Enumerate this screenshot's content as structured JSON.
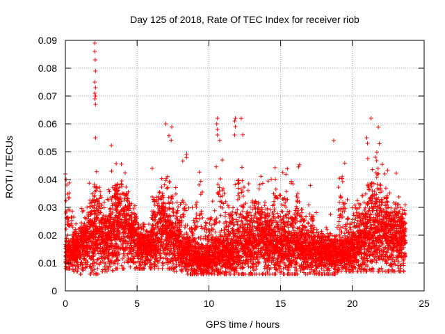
{
  "colors": {
    "marker": "#ff0000",
    "grid": "#a0a0a0",
    "axis": "#000000",
    "background": "#ffffff"
  },
  "chart_data": {
    "type": "scatter",
    "marker": "plus",
    "title": "Day 125 of 2018, Rate Of TEC Index for receiver riob",
    "xlabel": "GPS time / hours",
    "ylabel": "ROTI / TECUs",
    "xlim": [
      0,
      25
    ],
    "ylim": [
      0,
      0.09
    ],
    "xticks": [
      0,
      5,
      10,
      15,
      20,
      25
    ],
    "yticks": [
      0,
      0.01,
      0.02,
      0.03,
      0.04,
      0.05,
      0.06,
      0.07,
      0.08,
      0.09
    ],
    "xtick_labels": [
      "0",
      "5",
      "10",
      "15",
      "20",
      "25"
    ],
    "ytick_labels": [
      "0",
      "0.01",
      "0.02",
      "0.03",
      "0.04",
      "0.05",
      "0.06",
      "0.07",
      "0.08",
      "0.09"
    ],
    "grid": true,
    "density_profile": {
      "x_hours": [
        0,
        0.5,
        1,
        1.5,
        2,
        2.5,
        3,
        3.5,
        4,
        4.5,
        5,
        5.5,
        6,
        6.5,
        7,
        7.5,
        8,
        8.5,
        9,
        9.5,
        10,
        10.5,
        11,
        11.5,
        12,
        12.5,
        13,
        13.5,
        14,
        14.5,
        15,
        15.5,
        16,
        16.5,
        17,
        17.5,
        18,
        18.5,
        19,
        19.5,
        20,
        20.5,
        21,
        21.5,
        22,
        22.5,
        23,
        23.5
      ],
      "median_roti": [
        0.013,
        0.014,
        0.016,
        0.017,
        0.018,
        0.017,
        0.019,
        0.022,
        0.021,
        0.018,
        0.016,
        0.015,
        0.017,
        0.02,
        0.018,
        0.016,
        0.013,
        0.012,
        0.011,
        0.011,
        0.012,
        0.013,
        0.013,
        0.014,
        0.015,
        0.016,
        0.016,
        0.017,
        0.016,
        0.015,
        0.015,
        0.015,
        0.014,
        0.014,
        0.013,
        0.013,
        0.012,
        0.012,
        0.013,
        0.014,
        0.015,
        0.017,
        0.019,
        0.02,
        0.019,
        0.018,
        0.018,
        0.017
      ],
      "upper_envelope": [
        0.043,
        0.029,
        0.03,
        0.046,
        0.055,
        0.034,
        0.054,
        0.053,
        0.047,
        0.032,
        0.024,
        0.024,
        0.048,
        0.041,
        0.06,
        0.042,
        0.05,
        0.032,
        0.044,
        0.036,
        0.038,
        0.062,
        0.041,
        0.044,
        0.062,
        0.039,
        0.046,
        0.042,
        0.041,
        0.052,
        0.049,
        0.04,
        0.049,
        0.037,
        0.04,
        0.025,
        0.028,
        0.024,
        0.054,
        0.033,
        0.045,
        0.036,
        0.055,
        0.062,
        0.048,
        0.036,
        0.043,
        0.037
      ],
      "lower_envelope": [
        0.008,
        0.007,
        0.006,
        0.006,
        0.006,
        0.007,
        0.007,
        0.008,
        0.008,
        0.008,
        0.008,
        0.008,
        0.008,
        0.008,
        0.008,
        0.007,
        0.007,
        0.006,
        0.006,
        0.006,
        0.006,
        0.006,
        0.006,
        0.006,
        0.006,
        0.006,
        0.006,
        0.006,
        0.006,
        0.006,
        0.006,
        0.006,
        0.006,
        0.006,
        0.006,
        0.006,
        0.006,
        0.006,
        0.007,
        0.007,
        0.007,
        0.007,
        0.007,
        0.007,
        0.007,
        0.007,
        0.007,
        0.007
      ]
    },
    "outliers": [
      {
        "x": 0.0,
        "y": 0.042
      },
      {
        "x": 0.05,
        "y": 0.04
      },
      {
        "x": 0.1,
        "y": 0.038
      },
      {
        "x": 2.05,
        "y": 0.089
      },
      {
        "x": 2.05,
        "y": 0.086
      },
      {
        "x": 2.08,
        "y": 0.083
      },
      {
        "x": 2.1,
        "y": 0.079
      },
      {
        "x": 2.05,
        "y": 0.075
      },
      {
        "x": 2.1,
        "y": 0.073
      },
      {
        "x": 2.05,
        "y": 0.071
      },
      {
        "x": 2.1,
        "y": 0.07
      },
      {
        "x": 2.05,
        "y": 0.069
      },
      {
        "x": 2.1,
        "y": 0.067
      },
      {
        "x": 2.1,
        "y": 0.055
      },
      {
        "x": 7.0,
        "y": 0.06
      },
      {
        "x": 10.6,
        "y": 0.062
      },
      {
        "x": 10.55,
        "y": 0.06
      },
      {
        "x": 10.6,
        "y": 0.058
      },
      {
        "x": 10.6,
        "y": 0.056
      },
      {
        "x": 11.85,
        "y": 0.062
      },
      {
        "x": 11.8,
        "y": 0.061
      },
      {
        "x": 11.85,
        "y": 0.059
      },
      {
        "x": 11.8,
        "y": 0.056
      },
      {
        "x": 18.7,
        "y": 0.054
      },
      {
        "x": 21.3,
        "y": 0.062
      },
      {
        "x": 21.0,
        "y": 0.055
      },
      {
        "x": 21.05,
        "y": 0.053
      },
      {
        "x": 21.6,
        "y": 0.048
      }
    ]
  }
}
